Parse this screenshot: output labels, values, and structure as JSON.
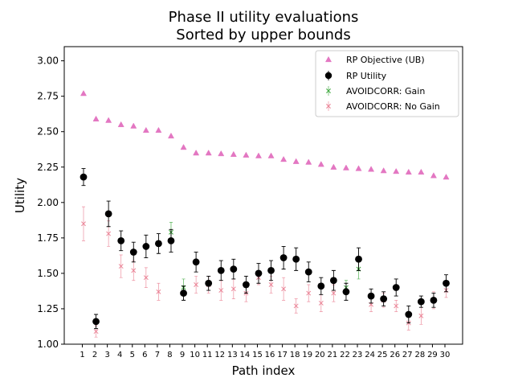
{
  "chart_data": {
    "type": "scatter",
    "title": [
      "Phase II utility evaluations",
      "Sorted by upper bounds"
    ],
    "xlabel": "Path index",
    "ylabel": "Utility",
    "categories": [
      "1",
      "2",
      "3",
      "4",
      "5",
      "6",
      "7",
      "8",
      "9",
      "10",
      "11",
      "12",
      "13",
      "14",
      "15",
      "16",
      "17",
      "18",
      "19",
      "20",
      "21",
      "22",
      "23",
      "24",
      "25",
      "26",
      "27",
      "28",
      "29",
      "30"
    ],
    "ylim": [
      1.0,
      3.1
    ],
    "yticks": [
      "1.00",
      "1.25",
      "1.50",
      "1.75",
      "2.00",
      "2.25",
      "2.50",
      "2.75",
      "3.00"
    ],
    "grid": false,
    "legend_position": "top-right",
    "series": [
      {
        "name": "RP Objective (UB)",
        "marker": "triangle",
        "color": "#e377c2",
        "values": [
          2.77,
          2.59,
          2.58,
          2.55,
          2.54,
          2.51,
          2.51,
          2.47,
          2.39,
          2.35,
          2.35,
          2.345,
          2.34,
          2.335,
          2.33,
          2.33,
          2.305,
          2.29,
          2.285,
          2.27,
          2.25,
          2.245,
          2.24,
          2.235,
          2.225,
          2.22,
          2.215,
          2.215,
          2.19,
          2.18
        ]
      },
      {
        "name": "RP Utility",
        "marker": "circle",
        "color": "#000000",
        "values": [
          2.18,
          1.16,
          1.92,
          1.73,
          1.65,
          1.69,
          1.71,
          1.73,
          1.36,
          1.58,
          1.43,
          1.52,
          1.53,
          1.42,
          1.5,
          1.52,
          1.61,
          1.6,
          1.51,
          1.41,
          1.45,
          1.37,
          1.6,
          1.34,
          1.32,
          1.4,
          1.21,
          1.3,
          1.31,
          1.43
        ],
        "errors": [
          0.06,
          0.05,
          0.09,
          0.07,
          0.07,
          0.08,
          0.07,
          0.08,
          0.05,
          0.07,
          0.05,
          0.07,
          0.07,
          0.06,
          0.07,
          0.07,
          0.08,
          0.08,
          0.07,
          0.06,
          0.07,
          0.06,
          0.08,
          0.05,
          0.05,
          0.06,
          0.06,
          0.04,
          0.05,
          0.06
        ]
      },
      {
        "name": "AVOIDCORR: Gain",
        "marker": "x",
        "color": "#2ca02c",
        "x": [
          "8",
          "9",
          "22",
          "23"
        ],
        "values": [
          1.79,
          1.4,
          1.4,
          1.53
        ],
        "errors": [
          0.07,
          0.06,
          0.05,
          0.07
        ]
      },
      {
        "name": "AVOIDCORR: No Gain",
        "marker": "x",
        "color": "#e8758a",
        "x": [
          "1",
          "2",
          "3",
          "4",
          "5",
          "6",
          "7",
          "10",
          "11",
          "12",
          "13",
          "14",
          "15",
          "16",
          "17",
          "18",
          "19",
          "20",
          "21",
          "24",
          "25",
          "26",
          "27",
          "28",
          "29",
          "30"
        ],
        "values": [
          1.85,
          1.09,
          1.78,
          1.55,
          1.52,
          1.47,
          1.37,
          1.42,
          1.42,
          1.38,
          1.39,
          1.36,
          1.47,
          1.42,
          1.39,
          1.27,
          1.36,
          1.29,
          1.36,
          1.28,
          1.31,
          1.27,
          1.15,
          1.2,
          1.31,
          1.38
        ],
        "errors": [
          0.12,
          0.04,
          0.09,
          0.08,
          0.07,
          0.07,
          0.06,
          0.06,
          0.06,
          0.07,
          0.07,
          0.06,
          0.05,
          0.06,
          0.08,
          0.05,
          0.06,
          0.06,
          0.06,
          0.05,
          0.05,
          0.04,
          0.05,
          0.06,
          0.06,
          0.05
        ]
      }
    ]
  }
}
